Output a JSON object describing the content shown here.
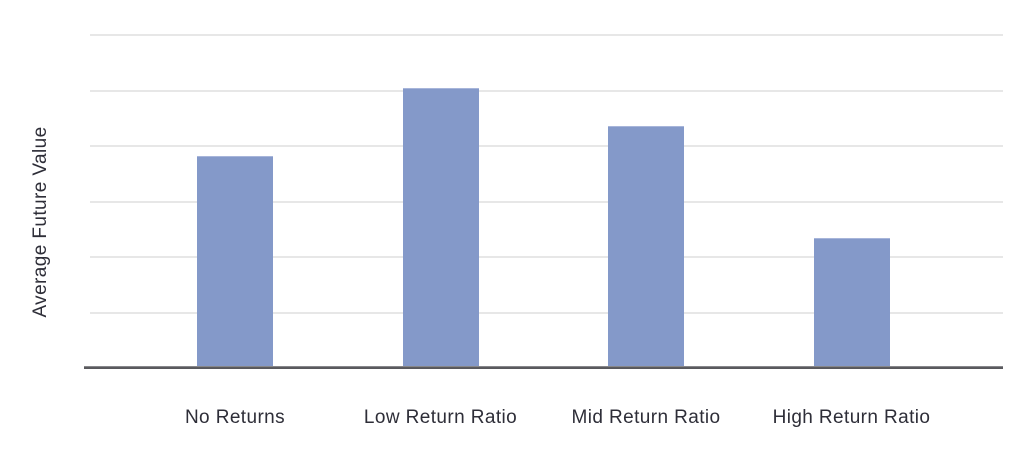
{
  "chart_data": {
    "type": "bar",
    "title": "",
    "xlabel": "",
    "ylabel": "Average Future Value",
    "categories": [
      "No Returns",
      "Low Return Ratio",
      "Mid Return Ratio",
      "High Return Ratio"
    ],
    "values": [
      3.82,
      5.05,
      4.36,
      2.34
    ],
    "ylim": [
      0,
      6.6
    ],
    "y_tick_labels": [],
    "gridlines": {
      "visible": true,
      "count": 6,
      "interval": 1
    },
    "legend_position": "none",
    "colors": {
      "bar_fill": "#8499C9",
      "bar_border": "#a7b5da",
      "gridline": "#e7e7e7",
      "axis_line": "#58585c",
      "label_text": "#2e2e38",
      "background": "#ffffff"
    }
  }
}
